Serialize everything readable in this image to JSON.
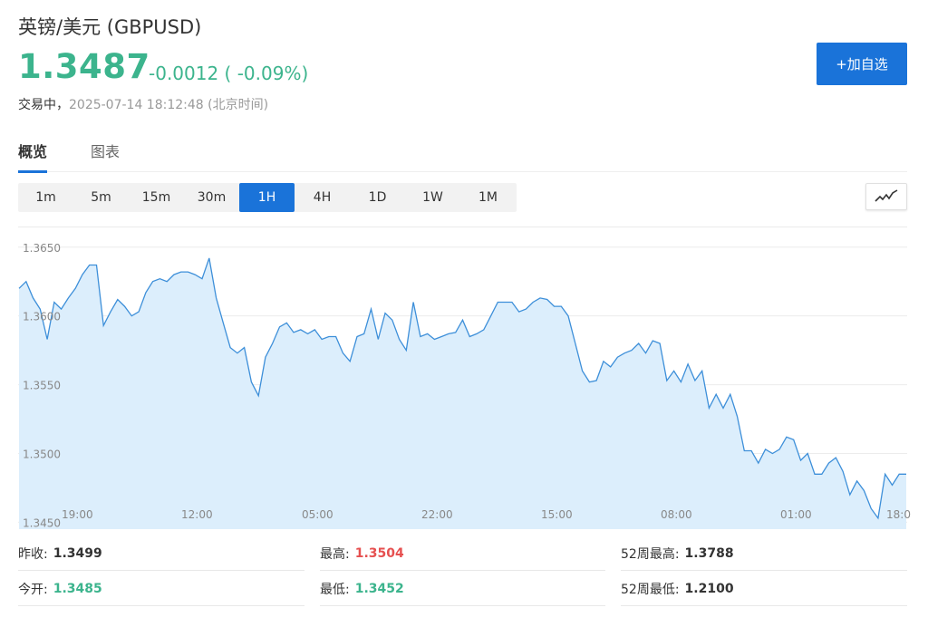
{
  "header": {
    "title": "英镑/美元 (GBPUSD)",
    "price": "1.3487",
    "change": "-0.0012 ( -0.09%)",
    "status_label": "交易中，",
    "timestamp": "2025-07-14 18:12:48",
    "timezone": "(北京时间)",
    "add_button": "+加自选"
  },
  "tabs": [
    {
      "label": "概览",
      "active": true
    },
    {
      "label": "图表",
      "active": false
    }
  ],
  "periods": [
    "1m",
    "5m",
    "15m",
    "30m",
    "1H",
    "4H",
    "1D",
    "1W",
    "1M"
  ],
  "active_period": "1H",
  "chart_type_icon": "line-chart-icon",
  "colors": {
    "up": "#e65050",
    "down": "#3cb48d",
    "accent": "#1a73d9",
    "chart_line": "#3d8fd9",
    "chart_fill": "#dceefc"
  },
  "chart_data": {
    "type": "area",
    "y_ticks": [
      "1.3650",
      "1.3600",
      "1.3550",
      "1.3500",
      "1.3450"
    ],
    "ylim": [
      1.3445,
      1.3665
    ],
    "x_ticks": [
      "19:00",
      "12:00",
      "05:00",
      "22:00",
      "15:00",
      "08:00",
      "01:00",
      "18:0"
    ],
    "values": [
      1.362,
      1.3625,
      1.3613,
      1.3605,
      1.3583,
      1.361,
      1.3605,
      1.3613,
      1.362,
      1.363,
      1.3637,
      1.3637,
      1.3593,
      1.3603,
      1.3612,
      1.3607,
      1.36,
      1.3603,
      1.3617,
      1.3625,
      1.3627,
      1.3625,
      1.363,
      1.3632,
      1.3632,
      1.363,
      1.3627,
      1.3642,
      1.3613,
      1.3595,
      1.3577,
      1.3573,
      1.3577,
      1.3552,
      1.3542,
      1.357,
      1.358,
      1.3592,
      1.3595,
      1.3588,
      1.359,
      1.3587,
      1.359,
      1.3583,
      1.3585,
      1.3585,
      1.3573,
      1.3567,
      1.3585,
      1.3587,
      1.3605,
      1.3583,
      1.3602,
      1.3597,
      1.3583,
      1.3575,
      1.361,
      1.3585,
      1.3587,
      1.3583,
      1.3585,
      1.3587,
      1.3588,
      1.3597,
      1.3585,
      1.3587,
      1.359,
      1.36,
      1.361,
      1.361,
      1.361,
      1.3603,
      1.3605,
      1.361,
      1.3613,
      1.3612,
      1.3607,
      1.3607,
      1.36,
      1.358,
      1.356,
      1.3552,
      1.3553,
      1.3567,
      1.3563,
      1.357,
      1.3573,
      1.3575,
      1.358,
      1.3573,
      1.3582,
      1.358,
      1.3553,
      1.356,
      1.3552,
      1.3565,
      1.3553,
      1.356,
      1.3533,
      1.3543,
      1.3533,
      1.3543,
      1.3527,
      1.3502,
      1.3502,
      1.3493,
      1.3503,
      1.35,
      1.3503,
      1.3512,
      1.351,
      1.3495,
      1.35,
      1.3485,
      1.3485,
      1.3493,
      1.3497,
      1.3487,
      1.347,
      1.348,
      1.3473,
      1.346,
      1.3453,
      1.3485,
      1.3477,
      1.3485,
      1.3485
    ]
  },
  "stats": {
    "prev_close_label": "昨收:",
    "prev_close": "1.3499",
    "open_label": "今开:",
    "open": "1.3485",
    "high_label": "最高:",
    "high": "1.3504",
    "low_label": "最低:",
    "low": "1.3452",
    "w52_high_label": "52周最高:",
    "w52_high": "1.3788",
    "w52_low_label": "52周最低:",
    "w52_low": "1.2100"
  }
}
